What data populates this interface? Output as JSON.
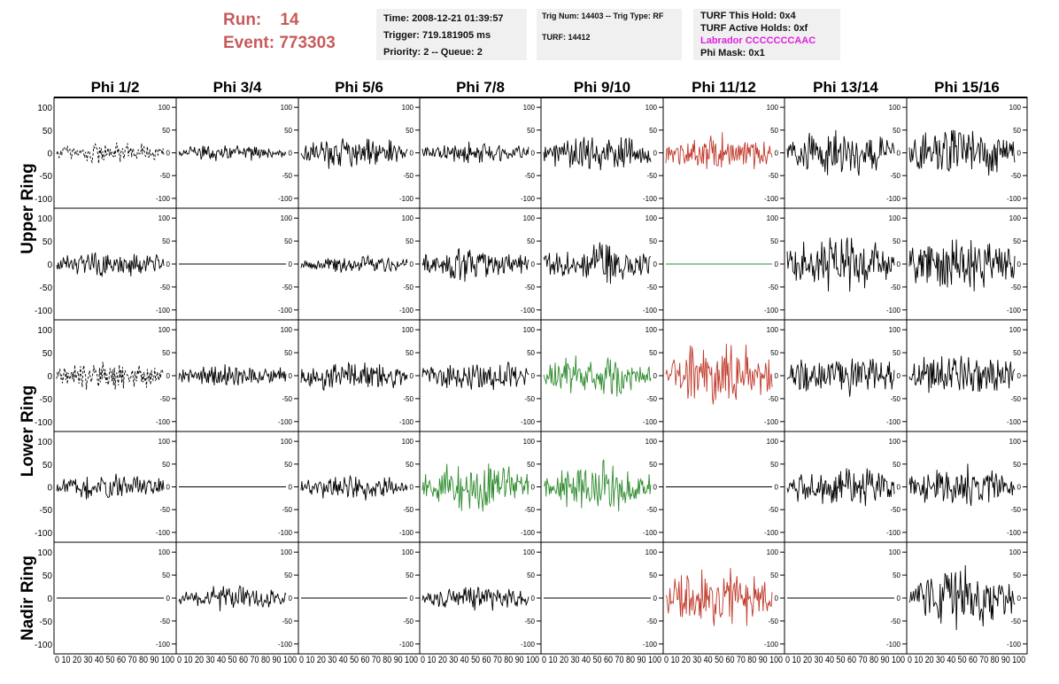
{
  "run_info": {
    "run_label": "Run:",
    "run_value": "14",
    "event_label": "Event:",
    "event_value": "773303"
  },
  "trigger_box": {
    "time": "Time: 2008-12-21 01:39:57",
    "trigger": "Trigger: 719.181905 ms",
    "priority": "Priority: 2 -- Queue: 2"
  },
  "trig_box": {
    "trig_line": "Trig Num: 14403 -- Trig Type: RF",
    "turf_line": "TURF: 14412"
  },
  "turf_box": {
    "hold": "TURF This Hold: 0x4",
    "active": "TURF Active Holds: 0xf",
    "labrador": "Labrador CCCCCCCAAC",
    "phimask": "Phi Mask: 0x1"
  },
  "colors": {
    "normal": "#000000",
    "triggered": "#c0392b",
    "l2": "#2e8b2e",
    "header_red": "#c85a5a",
    "magenta": "#e020e0"
  },
  "chart_data": {
    "type": "line",
    "columns": [
      "Phi 1/2",
      "Phi 3/4",
      "Phi 5/6",
      "Phi 7/8",
      "Phi 9/10",
      "Phi 11/12",
      "Phi 13/14",
      "Phi 15/16"
    ],
    "rows": [
      "Upper Ring",
      "Lower Ring",
      "Nadir Ring"
    ],
    "row_panels": [
      2,
      2,
      1
    ],
    "xlim": [
      0,
      100
    ],
    "ylim": [
      -110,
      110
    ],
    "y_ticks": [
      -100,
      -50,
      0,
      50,
      100
    ],
    "x_tick_label_strip": "0 10 20 30 40 50 60 70 80 90 100",
    "panels": [
      [
        {
          "a": 20,
          "s": "dashed",
          "c": "normal"
        },
        {
          "a": 15,
          "s": "solid",
          "c": "normal"
        },
        {
          "a": 28,
          "s": "solid",
          "c": "normal"
        },
        {
          "a": 18,
          "s": "solid",
          "c": "normal"
        },
        {
          "a": 32,
          "s": "solid",
          "c": "normal"
        },
        {
          "a": 35,
          "s": "solid",
          "c": "triggered"
        },
        {
          "a": 40,
          "s": "solid",
          "c": "normal"
        },
        {
          "a": 45,
          "s": "solid",
          "c": "normal"
        }
      ],
      [
        {
          "a": 22,
          "s": "solid",
          "c": "normal"
        },
        {
          "a": 0,
          "s": "flat",
          "c": "normal"
        },
        {
          "a": 15,
          "s": "solid",
          "c": "normal"
        },
        {
          "a": 30,
          "s": "solid",
          "c": "normal"
        },
        {
          "a": 35,
          "s": "solid",
          "c": "normal"
        },
        {
          "a": 0,
          "s": "flat",
          "c": "l2"
        },
        {
          "a": 50,
          "s": "solid",
          "c": "normal"
        },
        {
          "a": 50,
          "s": "solid",
          "c": "normal"
        }
      ],
      [
        {
          "a": 25,
          "s": "dashed",
          "c": "normal"
        },
        {
          "a": 20,
          "s": "solid",
          "c": "normal"
        },
        {
          "a": 28,
          "s": "solid",
          "c": "normal"
        },
        {
          "a": 28,
          "s": "solid",
          "c": "normal"
        },
        {
          "a": 35,
          "s": "solid",
          "c": "l2"
        },
        {
          "a": 55,
          "s": "solid",
          "c": "triggered"
        },
        {
          "a": 38,
          "s": "solid",
          "c": "normal"
        },
        {
          "a": 40,
          "s": "solid",
          "c": "normal"
        }
      ],
      [
        {
          "a": 22,
          "s": "solid",
          "c": "normal"
        },
        {
          "a": 0,
          "s": "flat",
          "c": "normal"
        },
        {
          "a": 22,
          "s": "solid",
          "c": "normal"
        },
        {
          "a": 45,
          "s": "solid",
          "c": "l2"
        },
        {
          "a": 45,
          "s": "solid",
          "c": "l2"
        },
        {
          "a": 0,
          "s": "flat",
          "c": "normal"
        },
        {
          "a": 38,
          "s": "solid",
          "c": "normal"
        },
        {
          "a": 38,
          "s": "solid",
          "c": "normal"
        }
      ],
      [
        {
          "a": 0,
          "s": "flat",
          "c": "normal"
        },
        {
          "a": 20,
          "s": "solid",
          "c": "normal"
        },
        {
          "a": 0,
          "s": "flat",
          "c": "normal"
        },
        {
          "a": 22,
          "s": "solid",
          "c": "normal"
        },
        {
          "a": 0,
          "s": "flat",
          "c": "normal"
        },
        {
          "a": 50,
          "s": "solid",
          "c": "triggered"
        },
        {
          "a": 0,
          "s": "flat",
          "c": "normal"
        },
        {
          "a": 50,
          "s": "solid",
          "c": "normal"
        }
      ]
    ]
  }
}
